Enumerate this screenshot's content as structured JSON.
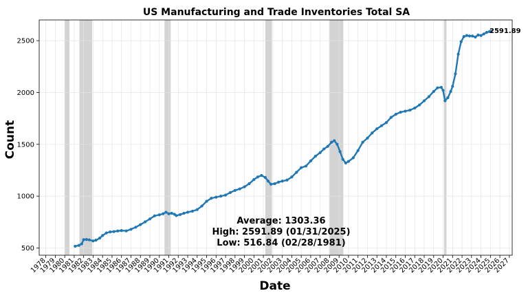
{
  "chart_data": {
    "type": "line",
    "title": "US Manufacturing and Trade Inventories Total SA",
    "xlabel": "Date",
    "ylabel": "Count",
    "xlim": [
      1977.3,
      2027.3
    ],
    "ylim": [
      430,
      2700
    ],
    "x_tick_labels": [
      "1978",
      "1979",
      "1980",
      "1981",
      "1982",
      "1983",
      "1984",
      "1985",
      "1986",
      "1987",
      "1988",
      "1989",
      "1990",
      "1991",
      "1992",
      "1993",
      "1994",
      "1995",
      "1996",
      "1997",
      "1998",
      "1999",
      "2000",
      "2001",
      "2002",
      "2003",
      "2004",
      "2005",
      "2006",
      "2007",
      "2008",
      "2009",
      "2010",
      "2011",
      "2012",
      "2013",
      "2014",
      "2015",
      "2016",
      "2017",
      "2018",
      "2019",
      "2020",
      "2021",
      "2022",
      "2023",
      "2024",
      "2025",
      "2026",
      "2027"
    ],
    "y_ticks": [
      500,
      1000,
      1500,
      2000,
      2500
    ],
    "grid": true,
    "series_color": "#1f77b4",
    "recession_color": "#d3d3d3",
    "recessions": [
      [
        1980.0,
        1980.5
      ],
      [
        1981.55,
        1982.9
      ],
      [
        1990.55,
        1991.2
      ],
      [
        2001.2,
        2001.9
      ],
      [
        2007.95,
        2009.45
      ],
      [
        2020.1,
        2020.35
      ]
    ],
    "series": [
      {
        "x": [
          1981.1,
          1981.5,
          1981.8,
          1982.0,
          1982.3,
          1982.6,
          1983.0,
          1983.3,
          1983.7,
          1984.0,
          1984.4,
          1984.8,
          1985.2,
          1985.6,
          1986.0,
          1986.5,
          1987.0,
          1987.5,
          1988.0,
          1988.5,
          1989.0,
          1989.5,
          1990.0,
          1990.4,
          1990.7,
          1991.0,
          1991.3,
          1991.6,
          1991.8,
          1992.2,
          1992.6,
          1993.0,
          1993.5,
          1994.0,
          1994.5,
          1995.0,
          1995.5,
          1996.0,
          1996.5,
          1997.0,
          1997.5,
          1998.0,
          1998.5,
          1999.0,
          1999.5,
          2000.0,
          2000.4,
          2000.8,
          2001.2,
          2001.5,
          2001.8,
          2002.2,
          2002.6,
          2003.0,
          2003.5,
          2004.0,
          2004.5,
          2005.0,
          2005.5,
          2006.0,
          2006.5,
          2007.0,
          2007.4,
          2007.8,
          2008.2,
          2008.5,
          2008.8,
          2009.1,
          2009.4,
          2009.7,
          2010.0,
          2010.5,
          2011.0,
          2011.5,
          2012.0,
          2012.5,
          2013.0,
          2013.5,
          2014.0,
          2014.5,
          2015.0,
          2015.5,
          2016.0,
          2016.5,
          2017.0,
          2017.5,
          2018.0,
          2018.5,
          2019.0,
          2019.4,
          2019.8,
          2020.0,
          2020.2,
          2020.5,
          2020.8,
          2021.0,
          2021.3,
          2021.6,
          2021.9,
          2022.2,
          2022.5,
          2022.8,
          2023.1,
          2023.4,
          2023.7,
          2024.0,
          2024.3,
          2024.6,
          2024.9,
          2025.08
        ],
        "y": [
          516.84,
          525,
          540,
          580,
          582,
          578,
          568,
          575,
          595,
          620,
          645,
          655,
          658,
          664,
          668,
          665,
          680,
          700,
          725,
          752,
          780,
          810,
          820,
          830,
          845,
          830,
          835,
          825,
          812,
          822,
          835,
          845,
          855,
          870,
          905,
          950,
          980,
          990,
          1000,
          1010,
          1035,
          1055,
          1070,
          1090,
          1120,
          1160,
          1185,
          1200,
          1180,
          1145,
          1115,
          1120,
          1135,
          1145,
          1155,
          1185,
          1230,
          1275,
          1290,
          1340,
          1385,
          1420,
          1455,
          1480,
          1520,
          1535,
          1500,
          1430,
          1355,
          1320,
          1335,
          1370,
          1440,
          1520,
          1560,
          1610,
          1650,
          1680,
          1710,
          1760,
          1790,
          1810,
          1820,
          1830,
          1850,
          1880,
          1920,
          1960,
          2010,
          2045,
          2050,
          2020,
          1920,
          1950,
          2010,
          2060,
          2180,
          2370,
          2490,
          2540,
          2550,
          2545,
          2545,
          2535,
          2555,
          2550,
          2565,
          2580,
          2588,
          2591.89
        ]
      }
    ],
    "annotations": {
      "last_value": "2591.89",
      "average": "Average: 1303.36",
      "high": "High: 2591.89 (01/31/2025)",
      "low": "Low: 516.84 (02/28/1981)"
    }
  }
}
